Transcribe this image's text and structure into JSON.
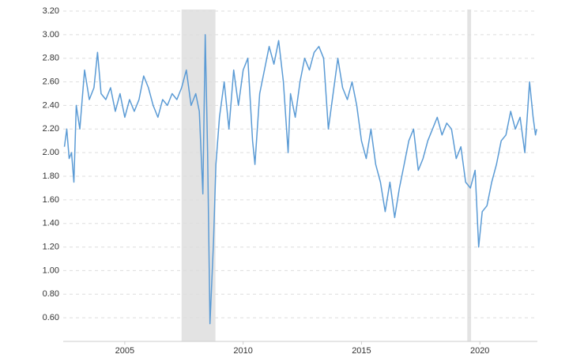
{
  "chart_data": {
    "type": "line",
    "x": [
      2002.45,
      2002.55,
      2002.65,
      2002.75,
      2002.85,
      2002.95,
      2003.1,
      2003.3,
      2003.5,
      2003.7,
      2003.85,
      2004.0,
      2004.2,
      2004.4,
      2004.6,
      2004.8,
      2005.0,
      2005.2,
      2005.4,
      2005.6,
      2005.8,
      2006.0,
      2006.2,
      2006.4,
      2006.6,
      2006.8,
      2007.0,
      2007.2,
      2007.4,
      2007.6,
      2007.8,
      2008.0,
      2008.15,
      2008.3,
      2008.4,
      2008.5,
      2008.6,
      2008.75,
      2008.85,
      2009.0,
      2009.2,
      2009.4,
      2009.6,
      2009.8,
      2010.0,
      2010.2,
      2010.4,
      2010.5,
      2010.7,
      2010.9,
      2011.1,
      2011.3,
      2011.5,
      2011.7,
      2011.9,
      2012.0,
      2012.2,
      2012.4,
      2012.6,
      2012.8,
      2013.0,
      2013.2,
      2013.4,
      2013.6,
      2013.8,
      2014.0,
      2014.2,
      2014.4,
      2014.6,
      2014.8,
      2015.0,
      2015.2,
      2015.4,
      2015.6,
      2015.8,
      2016.0,
      2016.2,
      2016.4,
      2016.6,
      2016.8,
      2017.0,
      2017.2,
      2017.4,
      2017.6,
      2017.8,
      2018.0,
      2018.2,
      2018.4,
      2018.6,
      2018.8,
      2019.0,
      2019.2,
      2019.4,
      2019.6,
      2019.8,
      2019.95,
      2020.1,
      2020.3,
      2020.5,
      2020.7,
      2020.9,
      2021.1,
      2021.3,
      2021.5,
      2021.7,
      2021.9,
      2022.1,
      2022.25,
      2022.35,
      2022.4
    ],
    "series": [
      {
        "color": "#5b9bd5",
        "values": [
          2.05,
          2.2,
          1.95,
          2.0,
          1.75,
          2.4,
          2.2,
          2.7,
          2.45,
          2.55,
          2.85,
          2.5,
          2.45,
          2.55,
          2.35,
          2.5,
          2.3,
          2.45,
          2.35,
          2.45,
          2.65,
          2.55,
          2.4,
          2.3,
          2.45,
          2.4,
          2.5,
          2.45,
          2.55,
          2.7,
          2.4,
          2.5,
          2.35,
          1.65,
          3.0,
          2.0,
          0.55,
          1.25,
          1.9,
          2.3,
          2.6,
          2.2,
          2.7,
          2.4,
          2.7,
          2.8,
          2.1,
          1.9,
          2.5,
          2.7,
          2.9,
          2.75,
          2.95,
          2.6,
          2.0,
          2.5,
          2.3,
          2.6,
          2.8,
          2.7,
          2.85,
          2.9,
          2.8,
          2.2,
          2.5,
          2.8,
          2.55,
          2.45,
          2.6,
          2.4,
          2.1,
          1.95,
          2.2,
          1.9,
          1.75,
          1.5,
          1.75,
          1.45,
          1.7,
          1.9,
          2.1,
          2.2,
          1.85,
          1.95,
          2.1,
          2.2,
          2.3,
          2.15,
          2.25,
          2.2,
          1.95,
          2.05,
          1.75,
          1.7,
          1.85,
          1.2,
          1.5,
          1.55,
          1.75,
          1.9,
          2.1,
          2.15,
          2.35,
          2.2,
          2.3,
          2.0,
          2.6,
          2.3,
          2.15,
          2.2
        ]
      }
    ],
    "xlim": [
      2002.4,
      2022.43
    ],
    "xticks": [
      2005,
      2010,
      2015,
      2020
    ],
    "ylim": [
      0.4,
      3.2
    ],
    "yticks": [
      {
        "value": 0.6,
        "label": "0.60"
      },
      {
        "value": 0.8,
        "label": "0.80"
      },
      {
        "value": 1.0,
        "label": "1.00"
      },
      {
        "value": 1.2,
        "label": "1.20"
      },
      {
        "value": 1.4,
        "label": "1.40"
      },
      {
        "value": 1.6,
        "label": "1.60"
      },
      {
        "value": 1.8,
        "label": "1.80"
      },
      {
        "value": 2.0,
        "label": "2.00"
      },
      {
        "value": 2.2,
        "label": "2.20"
      },
      {
        "value": 2.4,
        "label": "2.40"
      },
      {
        "value": 2.6,
        "label": "2.60"
      },
      {
        "value": 2.8,
        "label": "2.80"
      },
      {
        "value": 3.0,
        "label": "3.00"
      },
      {
        "value": 3.2,
        "label": "3.20"
      }
    ],
    "shaded_regions": [
      [
        2007.4,
        2008.83
      ],
      [
        2019.47,
        2019.63
      ]
    ],
    "shade_color": "#e3e3e3",
    "grid": true
  }
}
